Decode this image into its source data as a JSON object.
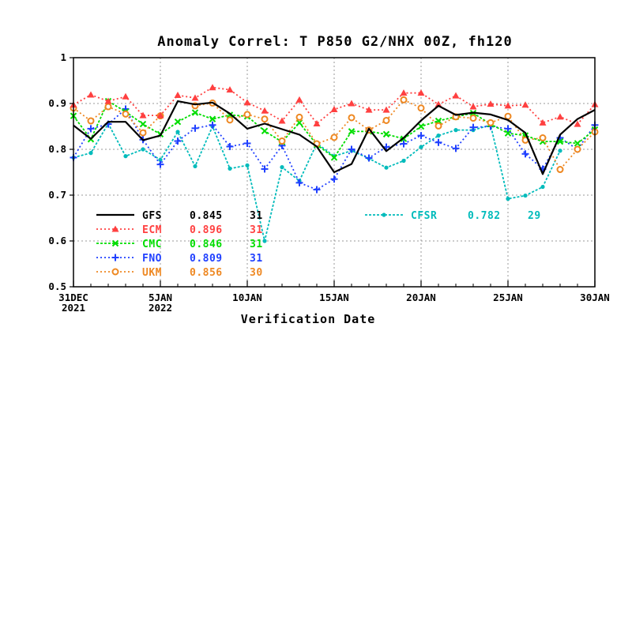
{
  "chart_data": {
    "type": "line",
    "title": "Anomaly Correl: T P850 G2/NHX 00Z, fh120",
    "xlabel": "Verification Date",
    "ylabel": "",
    "x_start": "2021-12-31",
    "x_end": "2022-01-30",
    "xlim": [
      "2021-12-31",
      "2022-01-30"
    ],
    "ylim": [
      0.5,
      1
    ],
    "grid": true,
    "y_ticks": [
      {
        "value": 0.5,
        "label": "0.5"
      },
      {
        "value": 0.6,
        "label": "0.6"
      },
      {
        "value": 0.7,
        "label": "0.7"
      },
      {
        "value": 0.8,
        "label": "0.8"
      },
      {
        "value": 0.9,
        "label": "0.9"
      },
      {
        "value": 1.0,
        "label": "1"
      }
    ],
    "x_ticks": [
      {
        "date": "2021-12-31",
        "label": "31DEC",
        "label2": "2021"
      },
      {
        "date": "2022-01-05",
        "label": "5JAN",
        "label2": "2022"
      },
      {
        "date": "2022-01-10",
        "label": "10JAN",
        "label2": ""
      },
      {
        "date": "2022-01-15",
        "label": "15JAN",
        "label2": ""
      },
      {
        "date": "2022-01-20",
        "label": "20JAN",
        "label2": ""
      },
      {
        "date": "2022-01-25",
        "label": "25JAN",
        "label2": ""
      },
      {
        "date": "2022-01-30",
        "label": "30JAN",
        "label2": ""
      }
    ],
    "series": [
      {
        "name": "GFS",
        "mean": "0.845",
        "count": "31",
        "color": "#000000",
        "marker": "none",
        "dash": "solid",
        "values": [
          0.852,
          0.823,
          0.86,
          0.86,
          0.82,
          0.83,
          0.905,
          0.898,
          0.902,
          0.878,
          0.845,
          0.856,
          0.844,
          0.832,
          0.806,
          0.75,
          0.768,
          0.845,
          0.796,
          0.825,
          0.863,
          0.895,
          0.875,
          0.88,
          0.876,
          0.864,
          0.836,
          0.746,
          0.832,
          0.866,
          0.886
        ]
      },
      {
        "name": "ECM",
        "mean": "0.896",
        "count": "31",
        "color": "#ff4040",
        "marker": "triangle",
        "dash": "dot",
        "values": [
          0.897,
          0.919,
          0.905,
          0.915,
          0.874,
          0.874,
          0.918,
          0.912,
          0.935,
          0.93,
          0.902,
          0.884,
          0.862,
          0.908,
          0.856,
          0.887,
          0.9,
          0.886,
          0.886,
          0.923,
          0.923,
          0.898,
          0.917,
          0.893,
          0.899,
          0.895,
          0.897,
          0.858,
          0.871,
          0.855,
          0.898
        ]
      },
      {
        "name": "CMC",
        "mean": "0.846",
        "count": "31",
        "color": "#00dd00",
        "marker": "x",
        "dash": "dash",
        "values": [
          0.873,
          0.822,
          0.905,
          0.882,
          0.855,
          0.833,
          0.86,
          0.88,
          0.866,
          0.875,
          0.872,
          0.84,
          0.816,
          0.858,
          0.81,
          0.782,
          0.839,
          0.839,
          0.833,
          0.823,
          0.85,
          0.862,
          0.871,
          0.879,
          0.855,
          0.835,
          0.83,
          0.817,
          0.817,
          0.813,
          0.843
        ]
      },
      {
        "name": "FNO",
        "mean": "0.809",
        "count": "31",
        "color": "#2040ff",
        "marker": "plus",
        "dash": "dot",
        "values": [
          0.782,
          0.845,
          0.855,
          0.888,
          0.821,
          0.767,
          0.818,
          0.846,
          0.853,
          0.806,
          0.813,
          0.757,
          0.808,
          0.727,
          0.712,
          0.735,
          0.8,
          0.781,
          0.805,
          0.812,
          0.83,
          0.815,
          0.802,
          0.848,
          0.85,
          0.845,
          0.79,
          0.757,
          0.825,
          0.8,
          0.853
        ]
      },
      {
        "name": "UKM",
        "mean": "0.856",
        "count": "30",
        "color": "#ee8822",
        "marker": "circle",
        "dash": "dot",
        "values": [
          0.89,
          0.862,
          0.893,
          0.877,
          0.836,
          0.873,
          null,
          0.895,
          0.901,
          0.864,
          0.876,
          0.866,
          0.818,
          0.87,
          0.812,
          0.826,
          0.869,
          0.842,
          0.863,
          0.908,
          0.89,
          0.851,
          0.871,
          0.868,
          0.858,
          0.872,
          0.82,
          0.825,
          0.756,
          0.8,
          0.838
        ]
      },
      {
        "name": "CFSR",
        "mean": "0.782",
        "count": "29",
        "color": "#00bbbb",
        "marker": "dot",
        "dash": "dash",
        "values": [
          0.782,
          0.792,
          0.856,
          0.785,
          0.8,
          0.777,
          0.838,
          0.763,
          0.85,
          0.758,
          0.765,
          0.6,
          0.761,
          0.731,
          0.813,
          0.785,
          0.797,
          0.78,
          0.76,
          0.775,
          0.805,
          0.83,
          0.842,
          0.842,
          0.853,
          0.692,
          0.699,
          0.718,
          0.797,
          null,
          null
        ]
      }
    ]
  }
}
